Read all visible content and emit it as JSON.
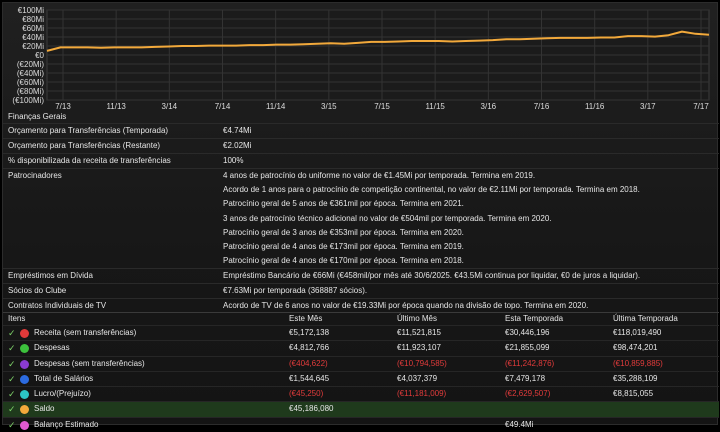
{
  "chart_data": {
    "type": "line",
    "y_tick_labels": [
      "€100Mi",
      "€80Mi",
      "€60Mi",
      "€40Mi",
      "€20Mi",
      "€0",
      "(€20Mi)",
      "(€40Mi)",
      "(€60Mi)",
      "(€80Mi)",
      "(€100Mi)"
    ],
    "ylim": [
      -100,
      100
    ],
    "x_tick_labels": [
      "7/13",
      "11/13",
      "3/14",
      "7/14",
      "11/14",
      "3/15",
      "7/15",
      "11/15",
      "3/16",
      "7/16",
      "11/16",
      "3/17",
      "7/17"
    ],
    "series": [
      {
        "name": "Saldo",
        "color": "#f2a93b",
        "x": [
          0,
          1,
          2,
          3,
          4,
          5,
          6,
          7,
          8,
          9,
          10,
          11,
          12,
          13,
          14,
          15,
          16,
          17,
          18,
          19,
          20,
          21,
          22,
          23,
          24,
          25,
          26,
          27,
          28,
          29,
          30,
          31,
          32,
          33,
          34,
          35,
          36,
          37,
          38,
          39,
          40,
          41,
          42,
          43,
          44,
          45,
          46,
          47,
          48,
          49
        ],
        "values": [
          9,
          17,
          17,
          17,
          16,
          17,
          17,
          17,
          18,
          19,
          20,
          20,
          21,
          21,
          21,
          22,
          22,
          23,
          23,
          24,
          25,
          26,
          25,
          27,
          29,
          29,
          30,
          31,
          31,
          31,
          30,
          31,
          32,
          33,
          35,
          35,
          36,
          37,
          38,
          38,
          38,
          39,
          39,
          42,
          42,
          41,
          44,
          52,
          47,
          45
        ]
      }
    ]
  },
  "finance": {
    "title": "Finanças Gerais",
    "rows": [
      {
        "label": "Orçamento para Transferências (Temporada)",
        "value": "€4.74Mi"
      },
      {
        "label": "Orçamento para Transferências (Restante)",
        "value": "€2.02Mi"
      },
      {
        "label": "% disponibilizada da receita de transferências",
        "value": "100%"
      },
      {
        "label": "Patrocinadores",
        "value": "4 anos de patrocínio do uniforme no valor de €1.45Mi por temporada. Termina em 2019."
      },
      {
        "label": "",
        "value": "Acordo de 1 anos para o patrocínio de competição continental, no valor de €2.11Mi por temporada. Termina em 2018."
      },
      {
        "label": "",
        "value": "Patrocínio geral de 5 anos de €361mil por época. Termina em 2021."
      },
      {
        "label": "",
        "value": "3 anos de patrocínio técnico adicional no valor de €504mil por temporada. Termina em 2020."
      },
      {
        "label": "",
        "value": "Patrocínio geral de 3 anos de €353mil por época. Termina em 2020."
      },
      {
        "label": "",
        "value": "Patrocínio geral de 4 anos de €173mil por época. Termina em 2019."
      },
      {
        "label": "",
        "value": "Patrocínio geral de 4 anos de €170mil por época. Termina em 2018."
      },
      {
        "label": "Empréstimos em Dívida",
        "value": "Empréstimo Bancário de €66Mi (€458mil/por mês até 30/6/2025. €43.5Mi continua por liquidar, €0 de juros a liquidar)."
      },
      {
        "label": "Sócios do Clube",
        "value": "€7.63Mi por temporada (368887 sócios)."
      },
      {
        "label": "Contratos Individuais de TV",
        "value": "Acordo de TV de 6 anos no valor de €19.33Mi por época quando na divisão de topo. Termina em 2020."
      }
    ]
  },
  "items": {
    "headers": {
      "items": "Itens",
      "c1": "Este Mês",
      "c2": "Último Mês",
      "c3": "Esta Temporada",
      "c4": "Última Temporada"
    },
    "check_glyph": "✓",
    "rows": [
      {
        "name": "Receita (sem transferências)",
        "color": "#e03a3a",
        "c1": "€5,172,138",
        "c2": "€11,521,815",
        "c3": "€30,446,196",
        "c4": "€118,019,490"
      },
      {
        "name": "Despesas",
        "color": "#3cc13c",
        "c1": "€4,812,766",
        "c2": "€11,923,107",
        "c3": "€21,855,099",
        "c4": "€98,474,201"
      },
      {
        "name": "Despesas (sem transferências)",
        "color": "#8a3bd1",
        "c1": "(€404,622)",
        "c2": "(€10,794,585)",
        "c3": "(€11,242,876)",
        "c4": "(€10,859,885)"
      },
      {
        "name": "Total de Salários",
        "color": "#2c6be0",
        "c1": "€1,544,645",
        "c2": "€4,037,379",
        "c3": "€7,479,178",
        "c4": "€35,288,109"
      },
      {
        "name": "Lucro/(Prejuízo)",
        "color": "#2cc4c4",
        "c1": "(€45,250)",
        "c2": "(€11,181,009)",
        "c3": "(€2,629,507)",
        "c4": "€8,815,055"
      },
      {
        "name": "Saldo",
        "color": "#f2a93b",
        "c1": "€45,186,080",
        "c2": "",
        "c3": "",
        "c4": ""
      },
      {
        "name": "Balanço Estimado",
        "color": "#e05ad0",
        "c1": "",
        "c2": "",
        "c3": "€49.4Mi",
        "c4": ""
      }
    ]
  }
}
